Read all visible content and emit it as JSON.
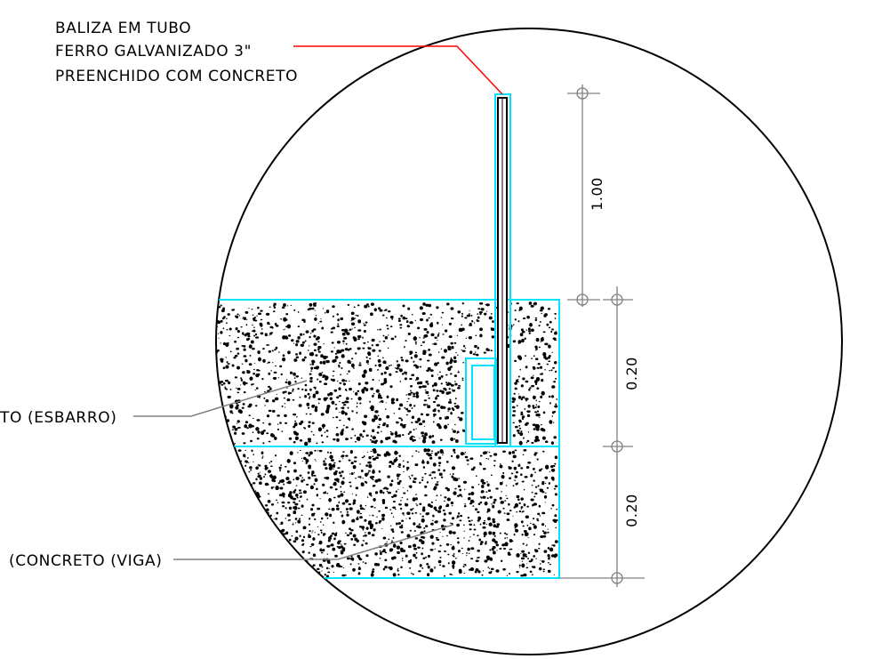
{
  "callouts": {
    "baliza": {
      "line1": "BALIZA EM TUBO",
      "line2": "FERRO GALVANIZADO  3\"",
      "line3": "PREENCHIDO COM CONCRETO"
    },
    "esbarro": "TO (ESBARRO)",
    "viga": "(CONCRETO (VIGA)"
  },
  "dimensions": {
    "baliza_height": "1.00",
    "esbarro_height": "0.20",
    "viga_height": "0.20"
  },
  "colors": {
    "section_outline": "#00e5ff",
    "leader_red": "#ff0000",
    "leader_gray": "#808080",
    "circle": "#000000",
    "speckle": "#000000"
  }
}
